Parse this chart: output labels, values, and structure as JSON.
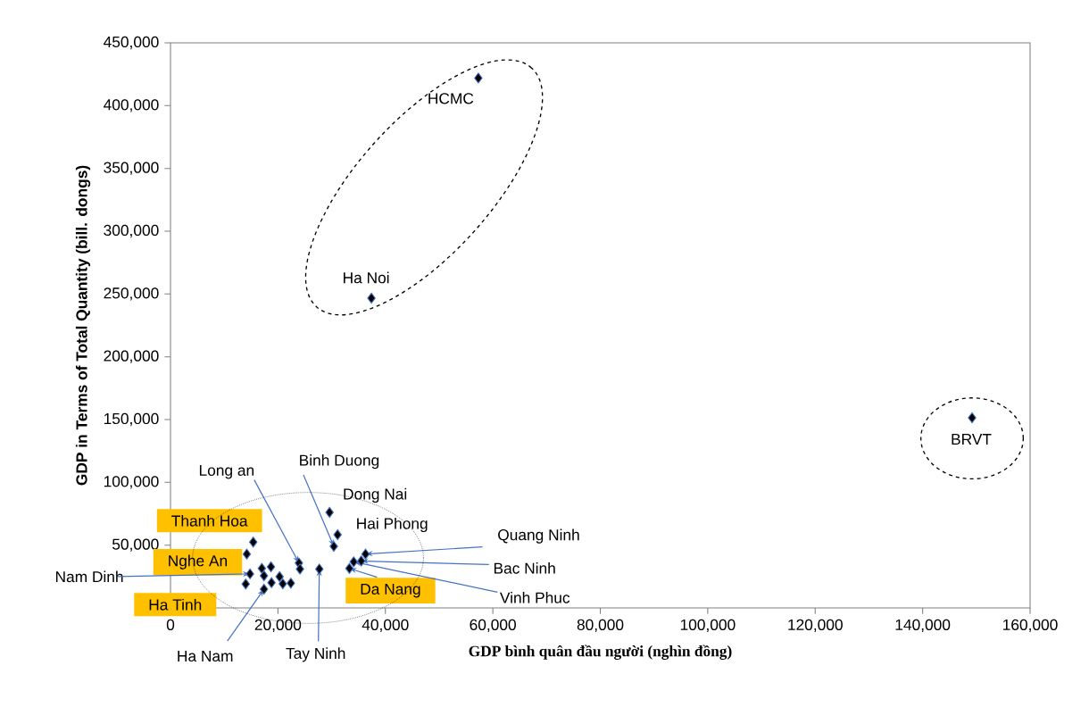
{
  "chart_data": {
    "type": "scatter",
    "xlabel": "GDP bình quân đầu người (nghìn đồng)",
    "ylabel": "GDP in Terms of Total Quantity (bill. dongs)",
    "xlim": [
      0,
      160000
    ],
    "ylim": [
      0,
      450000
    ],
    "xticks": [
      0,
      {
        "value": 20000,
        "label": "20,000"
      },
      {
        "value": 40000,
        "label": "40,000"
      },
      {
        "value": 60000,
        "label": "60,000"
      },
      {
        "value": 80000,
        "label": "80,000"
      },
      {
        "value": 100000,
        "label": "100,000"
      },
      {
        "value": 120000,
        "label": "120,000"
      },
      {
        "value": 140000,
        "label": "140,000"
      },
      {
        "value": 160000,
        "label": "160,000"
      }
    ],
    "yticks": [
      {
        "value": 50000,
        "label": "50,000"
      },
      {
        "value": 100000,
        "label": "100,000"
      },
      {
        "value": 150000,
        "label": "150,000"
      },
      {
        "value": 200000,
        "label": "200,000"
      },
      {
        "value": 250000,
        "label": "250,000"
      },
      {
        "value": 300000,
        "label": "300,000"
      },
      {
        "value": 350000,
        "label": "350,000"
      },
      {
        "value": 400000,
        "label": "400,000"
      },
      {
        "value": 450000,
        "label": "450,000"
      }
    ],
    "grid": false,
    "marker": "diamond",
    "color": "#000000",
    "x": [
      57300,
      37400,
      149200,
      29600,
      31100,
      30400,
      23900,
      24100,
      27700,
      15400,
      14200,
      14800,
      14000,
      17000,
      18700,
      17400,
      18800,
      17400,
      20300,
      20900,
      22400,
      36300,
      35500,
      34100,
      33300
    ],
    "values": [
      422000,
      246700,
      151400,
      76100,
      58300,
      49000,
      35800,
      31000,
      31000,
      52400,
      42900,
      27100,
      19000,
      31500,
      32700,
      25600,
      20100,
      14900,
      24900,
      19200,
      19700,
      42900,
      37400,
      36700,
      31500
    ],
    "annotations": [
      {
        "text": "HCMC",
        "x": 57300,
        "y": 422000
      },
      {
        "text": "Ha Noi",
        "x": 37400,
        "y": 246700
      },
      {
        "text": "BRVT",
        "x": 149200,
        "y": 151400
      },
      {
        "text": "Dong Nai",
        "x": 29600,
        "y": 76100
      },
      {
        "text": "Hai Phong",
        "x": 31100,
        "y": 58300
      },
      {
        "text": "Binh Duong",
        "x": 30400,
        "y": 49000
      },
      {
        "text": "Long an",
        "x": 23900,
        "y": 35800
      },
      {
        "text": "Thanh Hoa",
        "x": 15400,
        "y": 52400
      },
      {
        "text": "Nghe An",
        "x": 14200,
        "y": 42900
      },
      {
        "text": "Nam Dinh",
        "x": 14800,
        "y": 27100
      },
      "Ha Tinh",
      {
        "text": "Ha Nam",
        "x": 17400,
        "y": 14900
      },
      {
        "text": "Tay Ninh",
        "x": 27700,
        "y": 31000
      },
      {
        "text": "Da Nang",
        "x": 33300,
        "y": 31500
      },
      {
        "text": "Quang Ninh",
        "x": 36300,
        "y": 42900
      },
      {
        "text": "Bac Ninh",
        "x": 35500,
        "y": 37400
      },
      {
        "text": "Vinh Phuc",
        "x": 34100,
        "y": 36700
      }
    ]
  }
}
